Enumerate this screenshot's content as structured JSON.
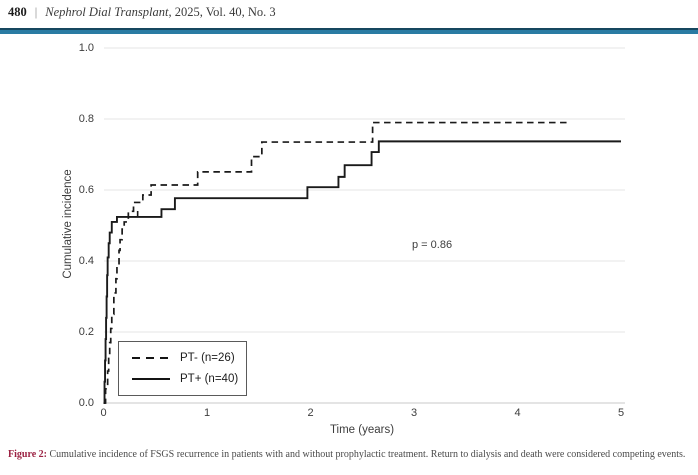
{
  "header": {
    "page_number": "480",
    "separator": "|",
    "journal_title": "Nephrol Dial Transplant",
    "issue_info": ", 2025, Vol. 40, No. 3",
    "rule_color": "#2a7ba3"
  },
  "chart_data": {
    "type": "line",
    "subtype": "cumulative-incidence-step",
    "title": "",
    "xlabel": "Time (years)",
    "ylabel": "Cumulative incidence",
    "xlim": [
      0,
      5
    ],
    "ylim": [
      0.0,
      1.0
    ],
    "x_ticks": [
      0,
      1,
      2,
      3,
      4,
      5
    ],
    "x_tick_labels": [
      "0",
      "1",
      "2",
      "3",
      "4",
      "5"
    ],
    "y_ticks": [
      0.0,
      0.2,
      0.4,
      0.6,
      0.8,
      1.0
    ],
    "y_tick_labels": [
      "0.0",
      "0.2",
      "0.4",
      "0.6",
      "0.8",
      "1.0"
    ],
    "grid": "horizontal",
    "annotation": "p = 0.86",
    "legend_position": "lower-left",
    "line_color": "#1a1a1a",
    "gridline_color": "#e4e4e4",
    "series": [
      {
        "name": "PT- (n=26)",
        "style": "dashed",
        "color": "#1a1a1a",
        "points": [
          [
            0.0,
            0.0
          ],
          [
            0.02,
            0.04
          ],
          [
            0.04,
            0.09
          ],
          [
            0.05,
            0.13
          ],
          [
            0.06,
            0.17
          ],
          [
            0.07,
            0.21
          ],
          [
            0.08,
            0.25
          ],
          [
            0.1,
            0.31
          ],
          [
            0.12,
            0.35
          ],
          [
            0.13,
            0.39
          ],
          [
            0.15,
            0.43
          ],
          [
            0.16,
            0.46
          ],
          [
            0.18,
            0.49
          ],
          [
            0.2,
            0.51
          ],
          [
            0.24,
            0.54
          ],
          [
            0.29,
            0.565
          ],
          [
            0.38,
            0.586
          ],
          [
            0.46,
            0.614
          ],
          [
            0.91,
            0.651
          ],
          [
            1.43,
            0.694
          ],
          [
            1.53,
            0.735
          ],
          [
            2.6,
            0.79
          ],
          [
            4.48,
            0.79
          ]
        ],
        "censor_ticks": []
      },
      {
        "name": "PT+ (n=40)",
        "style": "solid",
        "color": "#1a1a1a",
        "points": [
          [
            0.0,
            0.0
          ],
          [
            0.01,
            0.06
          ],
          [
            0.015,
            0.12
          ],
          [
            0.02,
            0.18
          ],
          [
            0.025,
            0.24
          ],
          [
            0.03,
            0.3
          ],
          [
            0.035,
            0.36
          ],
          [
            0.04,
            0.41
          ],
          [
            0.05,
            0.45
          ],
          [
            0.06,
            0.48
          ],
          [
            0.08,
            0.51
          ],
          [
            0.13,
            0.524
          ],
          [
            0.56,
            0.546
          ],
          [
            0.69,
            0.577
          ],
          [
            1.97,
            0.608
          ],
          [
            2.27,
            0.637
          ],
          [
            2.33,
            0.67
          ],
          [
            2.59,
            0.707
          ],
          [
            2.66,
            0.737
          ],
          [
            5.0,
            0.737
          ]
        ],
        "censor_ticks": [
          [
            0.33,
            0.524
          ]
        ]
      }
    ]
  },
  "caption": {
    "label": "Figure 2:",
    "text": "Cumulative incidence of FSGS recurrence in patients with and without prophylactic treatment. Return to dialysis and death were considered competing events.",
    "label_color": "#9b2142"
  }
}
